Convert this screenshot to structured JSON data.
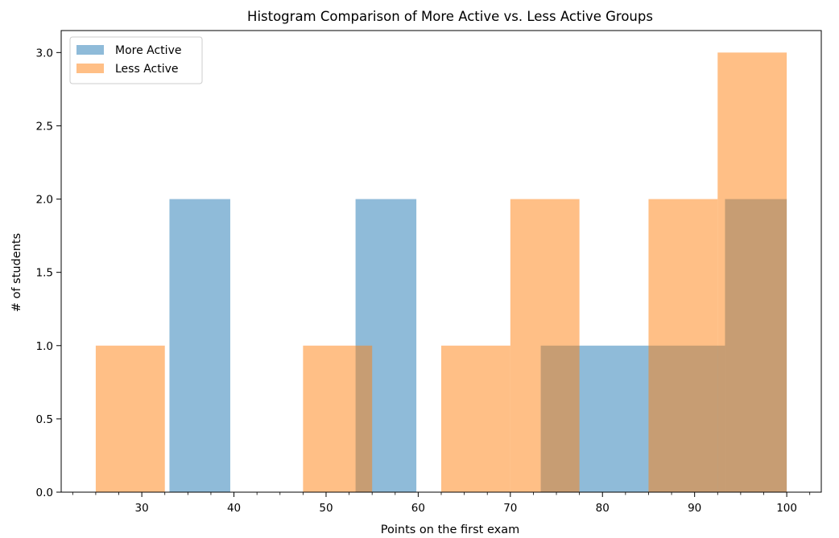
{
  "chart_data": {
    "type": "bar",
    "title": "Histogram Comparison of More Active vs. Less Active Groups",
    "xlabel": "Points on the first exam",
    "ylabel": "# of students",
    "xlim": [
      21.25,
      103.75
    ],
    "ylim": [
      0,
      3.15
    ],
    "xticks": [
      30,
      40,
      50,
      60,
      70,
      80,
      90,
      100
    ],
    "yticks": [
      0.0,
      0.5,
      1.0,
      1.5,
      2.0,
      2.5,
      3.0
    ],
    "legend_position": "upper-left",
    "grid": false,
    "series": [
      {
        "name": "More Active",
        "color": "#1f77b4",
        "opacity": 0.5,
        "bins": [
          {
            "x0": 33.0,
            "x1": 39.6,
            "count": 2
          },
          {
            "x0": 53.2,
            "x1": 59.8,
            "count": 2
          },
          {
            "x0": 73.3,
            "x1": 85.0,
            "count": 1
          },
          {
            "x0": 85.0,
            "x1": 93.3,
            "count": 1
          },
          {
            "x0": 93.3,
            "x1": 100.0,
            "count": 2
          }
        ]
      },
      {
        "name": "Less Active",
        "color": "#ff7f0e",
        "opacity": 0.5,
        "bins": [
          {
            "x0": 25.0,
            "x1": 32.5,
            "count": 1
          },
          {
            "x0": 47.5,
            "x1": 55.0,
            "count": 1
          },
          {
            "x0": 62.5,
            "x1": 70.0,
            "count": 1
          },
          {
            "x0": 70.0,
            "x1": 77.5,
            "count": 2
          },
          {
            "x0": 85.0,
            "x1": 92.5,
            "count": 2
          },
          {
            "x0": 92.5,
            "x1": 100.0,
            "count": 3
          }
        ]
      }
    ]
  }
}
